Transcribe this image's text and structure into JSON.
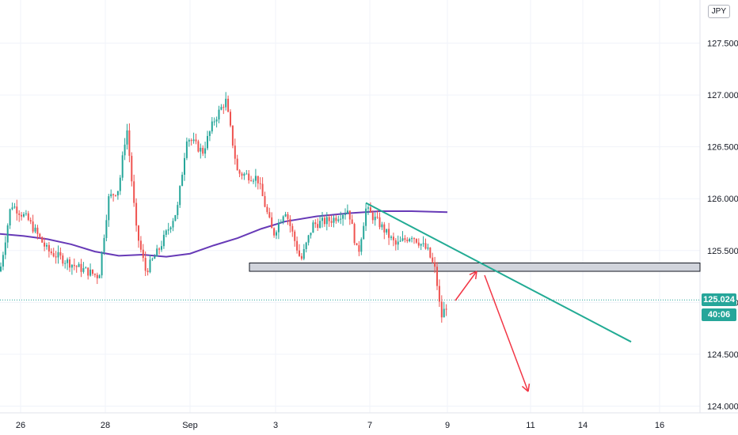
{
  "currency_label": "JPY",
  "price_badge": "125.024",
  "timer_badge": "40:06",
  "colors": {
    "up": "#26a69a",
    "down": "#ef5350",
    "ma": "#673ab7",
    "trendline": "#22ab94",
    "arrow": "#f23645",
    "zone_fill": "#d1d4dc",
    "zone_stroke": "#131722",
    "price_line": "#26a69a",
    "badge_bg": "#26a69a"
  },
  "chart_data": {
    "type": "candlestick",
    "y_ticks": [
      "127.500",
      "127.000",
      "126.500",
      "126.000",
      "125.500",
      "125.000",
      "124.500",
      "124.000"
    ],
    "x_ticks": [
      "26",
      "28",
      "Sep",
      "3",
      "7",
      "9",
      "11",
      "14",
      "16"
    ],
    "ylim": [
      123.95,
      127.85
    ],
    "grid": true,
    "candles": [],
    "moving_average": [
      125.66,
      125.64,
      125.61,
      125.56,
      125.49,
      125.45,
      125.46,
      125.44,
      125.47,
      125.55,
      125.62,
      125.71,
      125.78,
      125.83,
      125.86,
      125.88,
      125.88,
      125.87
    ],
    "support_zone": [
      125.3,
      125.38
    ],
    "trendline": [
      [
        125.96,
        124.62
      ]
    ],
    "current_price": 125.024
  }
}
